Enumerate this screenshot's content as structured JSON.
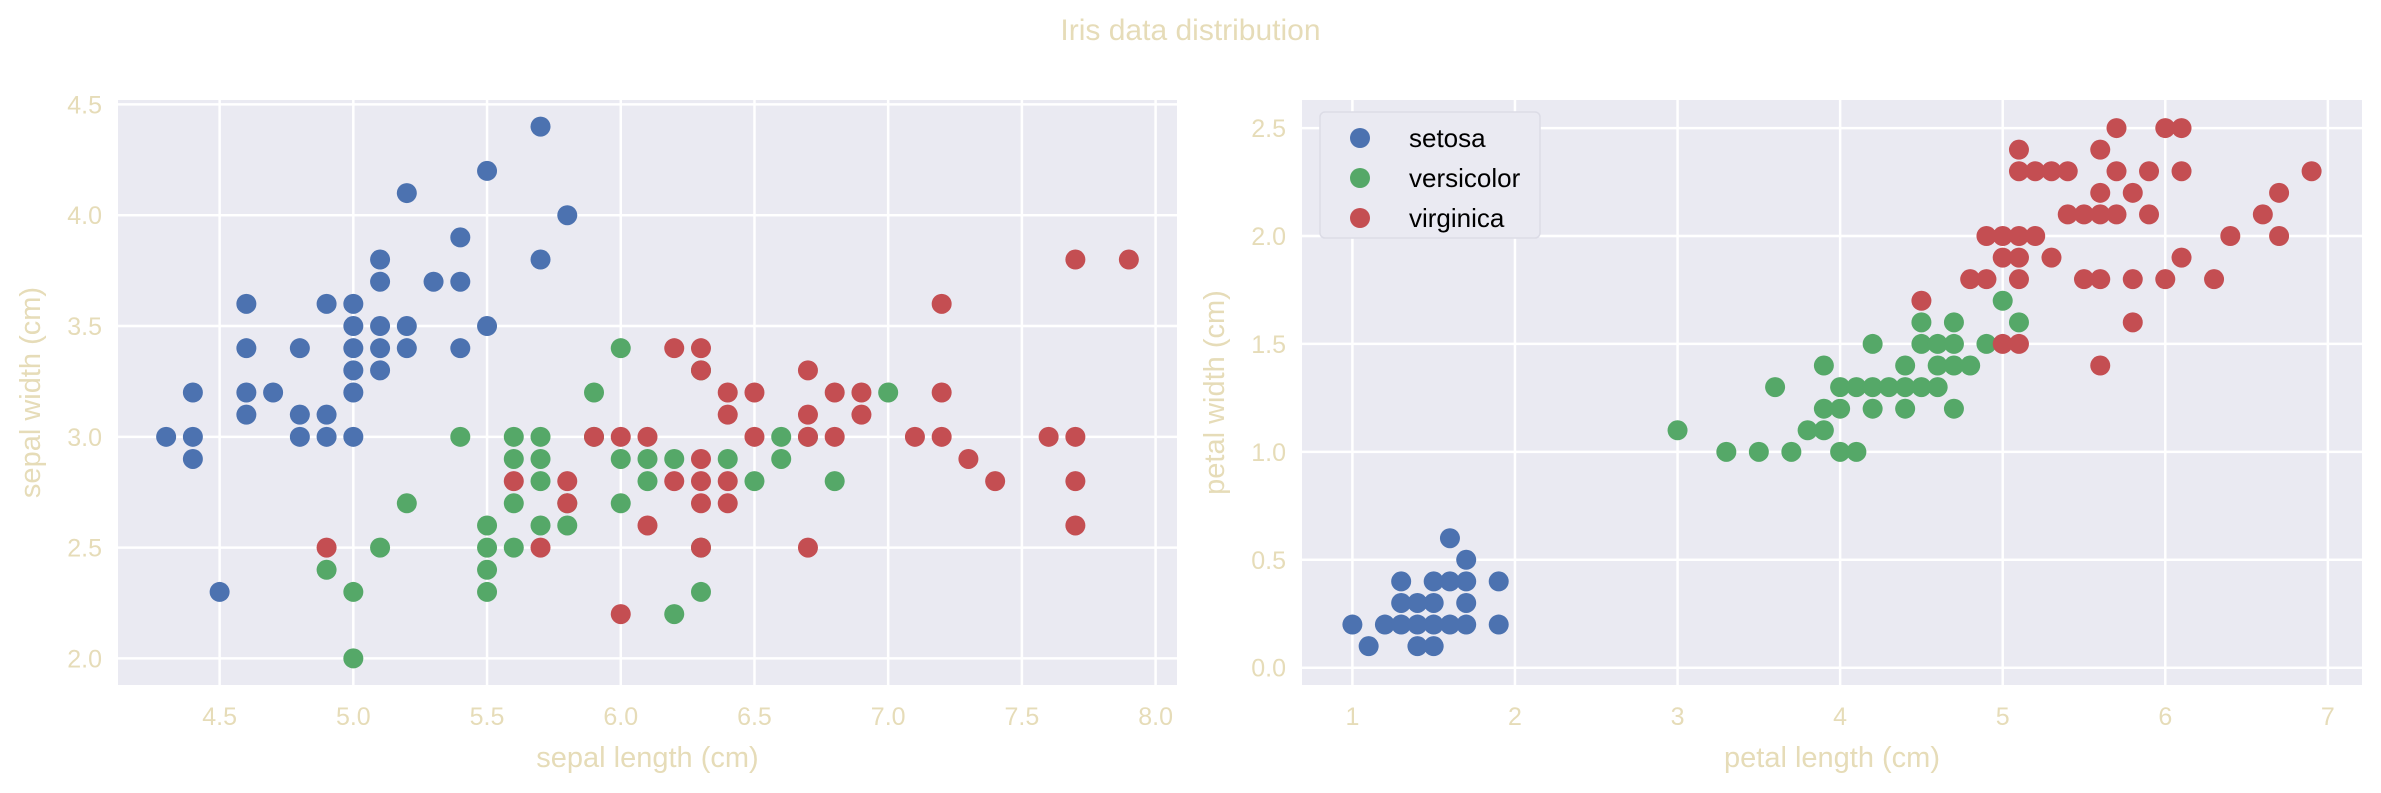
{
  "figure": {
    "title": "Iris data distribution"
  },
  "colors": {
    "setosa": "#4c72b0",
    "versicolor": "#55a868",
    "virginica": "#c44e52",
    "plot_bg": "#eaeaf2",
    "text": "#e6dcb8",
    "grid": "#ffffff"
  },
  "chart_data": [
    {
      "type": "scatter",
      "title": "",
      "xlabel": "sepal length (cm)",
      "ylabel": "sepal width (cm)",
      "xlim": [
        4.12,
        8.08
      ],
      "ylim": [
        1.88,
        4.52
      ],
      "xticks": [
        "4.5",
        "5.0",
        "5.5",
        "6.0",
        "6.5",
        "7.0",
        "7.5",
        "8.0"
      ],
      "yticks": [
        "2.0",
        "2.5",
        "3.0",
        "3.5",
        "4.0",
        "4.5"
      ],
      "grid": true,
      "legend": null,
      "series": [
        {
          "name": "setosa",
          "color": "#4c72b0",
          "points": [
            [
              4.3,
              3.0
            ],
            [
              4.4,
              2.9
            ],
            [
              4.4,
              3.0
            ],
            [
              4.4,
              3.2
            ],
            [
              4.5,
              2.3
            ],
            [
              4.6,
              3.1
            ],
            [
              4.6,
              3.2
            ],
            [
              4.6,
              3.4
            ],
            [
              4.6,
              3.6
            ],
            [
              4.7,
              3.2
            ],
            [
              4.8,
              3.0
            ],
            [
              4.8,
              3.1
            ],
            [
              4.8,
              3.4
            ],
            [
              4.9,
              3.0
            ],
            [
              4.9,
              3.1
            ],
            [
              4.9,
              3.6
            ],
            [
              5.0,
              3.0
            ],
            [
              5.0,
              3.2
            ],
            [
              5.0,
              3.3
            ],
            [
              5.0,
              3.4
            ],
            [
              5.0,
              3.5
            ],
            [
              5.0,
              3.6
            ],
            [
              5.1,
              3.3
            ],
            [
              5.1,
              3.4
            ],
            [
              5.1,
              3.5
            ],
            [
              5.1,
              3.7
            ],
            [
              5.1,
              3.8
            ],
            [
              5.2,
              3.4
            ],
            [
              5.2,
              3.5
            ],
            [
              5.2,
              4.1
            ],
            [
              5.3,
              3.7
            ],
            [
              5.4,
              3.4
            ],
            [
              5.4,
              3.7
            ],
            [
              5.4,
              3.9
            ],
            [
              5.5,
              3.5
            ],
            [
              5.5,
              4.2
            ],
            [
              5.7,
              3.8
            ],
            [
              5.7,
              4.4
            ],
            [
              5.8,
              4.0
            ]
          ]
        },
        {
          "name": "versicolor",
          "color": "#55a868",
          "points": [
            [
              4.9,
              2.4
            ],
            [
              5.0,
              2.0
            ],
            [
              5.0,
              2.3
            ],
            [
              5.1,
              2.5
            ],
            [
              5.2,
              2.7
            ],
            [
              5.4,
              3.0
            ],
            [
              5.5,
              2.3
            ],
            [
              5.5,
              2.4
            ],
            [
              5.5,
              2.5
            ],
            [
              5.5,
              2.6
            ],
            [
              5.6,
              2.5
            ],
            [
              5.6,
              2.7
            ],
            [
              5.6,
              2.9
            ],
            [
              5.6,
              3.0
            ],
            [
              5.7,
              2.6
            ],
            [
              5.7,
              2.8
            ],
            [
              5.7,
              2.9
            ],
            [
              5.7,
              3.0
            ],
            [
              5.8,
              2.6
            ],
            [
              5.8,
              2.7
            ],
            [
              5.9,
              3.0
            ],
            [
              5.9,
              3.2
            ],
            [
              6.0,
              2.7
            ],
            [
              6.0,
              2.9
            ],
            [
              6.0,
              3.4
            ],
            [
              6.1,
              2.8
            ],
            [
              6.1,
              2.9
            ],
            [
              6.2,
              2.2
            ],
            [
              6.2,
              2.9
            ],
            [
              6.3,
              2.3
            ],
            [
              6.3,
              2.5
            ],
            [
              6.3,
              3.3
            ],
            [
              6.4,
              2.9
            ],
            [
              6.5,
              2.8
            ],
            [
              6.6,
              2.9
            ],
            [
              6.6,
              3.0
            ],
            [
              6.7,
              3.0
            ],
            [
              6.8,
              2.8
            ],
            [
              7.0,
              3.2
            ]
          ]
        },
        {
          "name": "virginica",
          "color": "#c44e52",
          "points": [
            [
              4.9,
              2.5
            ],
            [
              5.6,
              2.8
            ],
            [
              5.7,
              2.5
            ],
            [
              5.8,
              2.7
            ],
            [
              5.8,
              2.8
            ],
            [
              5.9,
              3.0
            ],
            [
              6.0,
              2.2
            ],
            [
              6.0,
              3.0
            ],
            [
              6.1,
              2.6
            ],
            [
              6.1,
              3.0
            ],
            [
              6.2,
              2.8
            ],
            [
              6.2,
              3.4
            ],
            [
              6.3,
              2.5
            ],
            [
              6.3,
              2.7
            ],
            [
              6.3,
              2.8
            ],
            [
              6.3,
              2.9
            ],
            [
              6.3,
              3.3
            ],
            [
              6.3,
              3.4
            ],
            [
              6.4,
              2.7
            ],
            [
              6.4,
              2.8
            ],
            [
              6.4,
              3.1
            ],
            [
              6.4,
              3.2
            ],
            [
              6.5,
              3.0
            ],
            [
              6.5,
              3.2
            ],
            [
              6.7,
              2.5
            ],
            [
              6.7,
              3.0
            ],
            [
              6.7,
              3.1
            ],
            [
              6.7,
              3.3
            ],
            [
              6.8,
              3.0
            ],
            [
              6.8,
              3.2
            ],
            [
              6.9,
              3.1
            ],
            [
              6.9,
              3.2
            ],
            [
              7.1,
              3.0
            ],
            [
              7.2,
              3.0
            ],
            [
              7.2,
              3.2
            ],
            [
              7.2,
              3.6
            ],
            [
              7.3,
              2.9
            ],
            [
              7.4,
              2.8
            ],
            [
              7.6,
              3.0
            ],
            [
              7.7,
              2.6
            ],
            [
              7.7,
              2.8
            ],
            [
              7.7,
              3.0
            ],
            [
              7.7,
              3.8
            ],
            [
              7.9,
              3.8
            ]
          ]
        }
      ]
    },
    {
      "type": "scatter",
      "title": "",
      "xlabel": "petal length (cm)",
      "ylabel": "petal width (cm)",
      "xlim": [
        0.69,
        7.21
      ],
      "ylim": [
        -0.08,
        2.63
      ],
      "xticks": [
        "1",
        "2",
        "3",
        "4",
        "5",
        "6",
        "7"
      ],
      "yticks": [
        "0.0",
        "0.5",
        "1.0",
        "1.5",
        "2.0",
        "2.5"
      ],
      "grid": true,
      "legend": "top-left",
      "series": [
        {
          "name": "setosa",
          "color": "#4c72b0",
          "points": [
            [
              1.0,
              0.2
            ],
            [
              1.1,
              0.1
            ],
            [
              1.2,
              0.2
            ],
            [
              1.3,
              0.2
            ],
            [
              1.3,
              0.3
            ],
            [
              1.3,
              0.4
            ],
            [
              1.4,
              0.1
            ],
            [
              1.4,
              0.2
            ],
            [
              1.4,
              0.3
            ],
            [
              1.5,
              0.1
            ],
            [
              1.5,
              0.2
            ],
            [
              1.5,
              0.3
            ],
            [
              1.5,
              0.4
            ],
            [
              1.6,
              0.2
            ],
            [
              1.6,
              0.4
            ],
            [
              1.6,
              0.6
            ],
            [
              1.7,
              0.2
            ],
            [
              1.7,
              0.3
            ],
            [
              1.7,
              0.4
            ],
            [
              1.7,
              0.5
            ],
            [
              1.9,
              0.2
            ],
            [
              1.9,
              0.4
            ]
          ]
        },
        {
          "name": "versicolor",
          "color": "#55a868",
          "points": [
            [
              3.0,
              1.1
            ],
            [
              3.3,
              1.0
            ],
            [
              3.5,
              1.0
            ],
            [
              3.6,
              1.3
            ],
            [
              3.7,
              1.0
            ],
            [
              3.8,
              1.1
            ],
            [
              3.9,
              1.1
            ],
            [
              3.9,
              1.2
            ],
            [
              3.9,
              1.4
            ],
            [
              4.0,
              1.0
            ],
            [
              4.0,
              1.2
            ],
            [
              4.0,
              1.3
            ],
            [
              4.1,
              1.0
            ],
            [
              4.1,
              1.3
            ],
            [
              4.2,
              1.2
            ],
            [
              4.2,
              1.3
            ],
            [
              4.2,
              1.5
            ],
            [
              4.3,
              1.3
            ],
            [
              4.4,
              1.2
            ],
            [
              4.4,
              1.3
            ],
            [
              4.4,
              1.4
            ],
            [
              4.5,
              1.3
            ],
            [
              4.5,
              1.5
            ],
            [
              4.5,
              1.6
            ],
            [
              4.6,
              1.3
            ],
            [
              4.6,
              1.4
            ],
            [
              4.6,
              1.5
            ],
            [
              4.7,
              1.2
            ],
            [
              4.7,
              1.4
            ],
            [
              4.7,
              1.5
            ],
            [
              4.7,
              1.6
            ],
            [
              4.8,
              1.4
            ],
            [
              4.9,
              1.5
            ],
            [
              5.0,
              1.7
            ],
            [
              5.1,
              1.6
            ]
          ]
        },
        {
          "name": "virginica",
          "color": "#c44e52",
          "points": [
            [
              4.5,
              1.7
            ],
            [
              4.8,
              1.8
            ],
            [
              4.9,
              1.8
            ],
            [
              4.9,
              2.0
            ],
            [
              5.0,
              1.5
            ],
            [
              5.0,
              1.9
            ],
            [
              5.0,
              2.0
            ],
            [
              5.1,
              1.5
            ],
            [
              5.1,
              1.8
            ],
            [
              5.1,
              1.9
            ],
            [
              5.1,
              2.0
            ],
            [
              5.1,
              2.3
            ],
            [
              5.1,
              2.4
            ],
            [
              5.2,
              2.0
            ],
            [
              5.2,
              2.3
            ],
            [
              5.3,
              1.9
            ],
            [
              5.3,
              2.3
            ],
            [
              5.4,
              2.1
            ],
            [
              5.4,
              2.3
            ],
            [
              5.5,
              1.8
            ],
            [
              5.5,
              2.1
            ],
            [
              5.6,
              1.4
            ],
            [
              5.6,
              1.8
            ],
            [
              5.6,
              2.1
            ],
            [
              5.6,
              2.2
            ],
            [
              5.6,
              2.4
            ],
            [
              5.7,
              2.1
            ],
            [
              5.7,
              2.3
            ],
            [
              5.7,
              2.5
            ],
            [
              5.8,
              1.6
            ],
            [
              5.8,
              1.8
            ],
            [
              5.8,
              2.2
            ],
            [
              5.9,
              2.1
            ],
            [
              5.9,
              2.3
            ],
            [
              6.0,
              1.8
            ],
            [
              6.0,
              2.5
            ],
            [
              6.1,
              1.9
            ],
            [
              6.1,
              2.3
            ],
            [
              6.1,
              2.5
            ],
            [
              6.3,
              1.8
            ],
            [
              6.4,
              2.0
            ],
            [
              6.6,
              2.1
            ],
            [
              6.7,
              2.0
            ],
            [
              6.7,
              2.2
            ],
            [
              6.9,
              2.3
            ]
          ]
        }
      ]
    }
  ]
}
